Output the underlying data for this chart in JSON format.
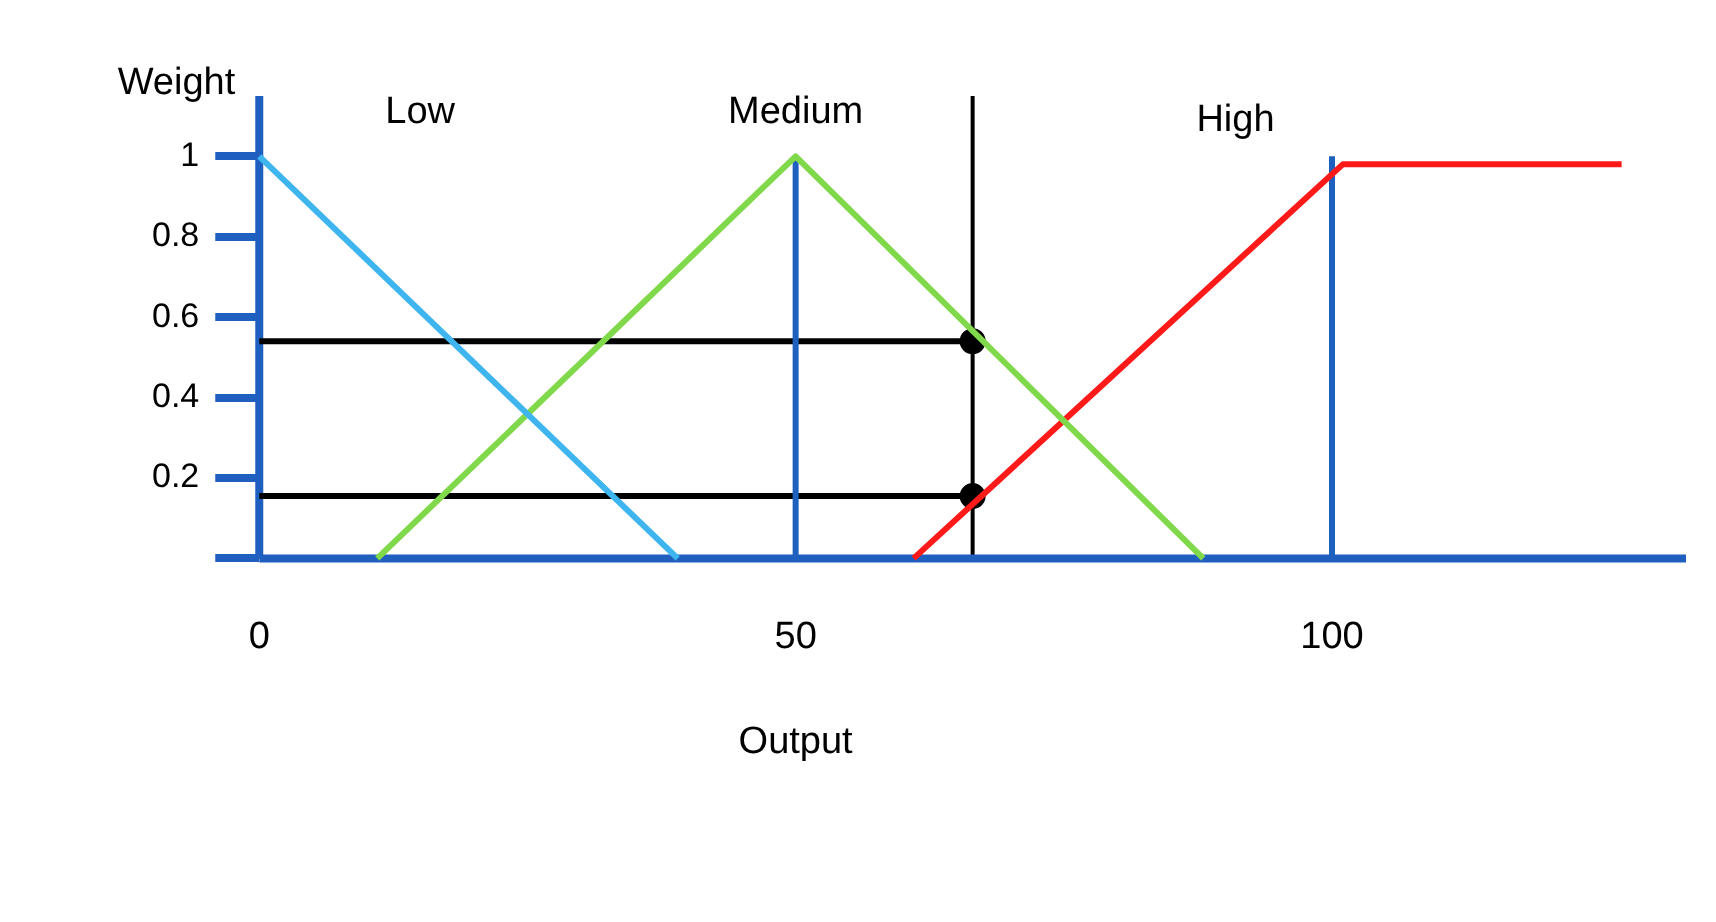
{
  "chart_data": {
    "type": "line",
    "xlabel": "Output",
    "ylabel": "Weight",
    "xlim": [
      0,
      133
    ],
    "xticks": [
      0,
      50,
      100
    ],
    "ylim": [
      0,
      1.15
    ],
    "yticks": [
      {
        "value": 0,
        "label": null
      },
      0.2,
      0.4,
      0.6,
      0.8,
      1
    ],
    "grid": false,
    "legend": false,
    "series": [
      {
        "name": "Low",
        "color": "#3fb5f0",
        "x": [
          0,
          39
        ],
        "values": [
          1,
          0
        ],
        "marker": "none"
      },
      {
        "name": "Medium",
        "color": "#80d94a",
        "x": [
          11,
          50,
          88
        ],
        "values": [
          0,
          1,
          0
        ],
        "marker": "none"
      },
      {
        "name": "High",
        "color": "#ff1a1a",
        "x": [
          61,
          101,
          127
        ],
        "values": [
          0,
          0.98,
          0.98
        ],
        "marker": "none"
      },
      {
        "color": "#1f5fbf",
        "x": [
          50,
          50
        ],
        "values": [
          0,
          1
        ],
        "marker": "none"
      },
      {
        "color": "#1f5fbf",
        "x": [
          100,
          100
        ],
        "values": [
          0,
          1
        ],
        "marker": "none"
      },
      {
        "color": "#000000",
        "x": [
          0,
          66.5
        ],
        "values": [
          0.54,
          0.54
        ],
        "marker": "none"
      },
      {
        "color": "#000000",
        "x": [
          0,
          66.5
        ],
        "values": [
          0.155,
          0.155
        ],
        "marker": "none"
      },
      {
        "type": "scatter",
        "color": "#000000",
        "x": [
          66.5,
          66.5
        ],
        "values": [
          0.54,
          0.155
        ],
        "marker": "circle"
      }
    ],
    "ref_lines": [
      {
        "axis": "x",
        "value": 66.5,
        "color": "#000000"
      },
      {
        "axis": "x",
        "value": 0,
        "color": "#1f5fbf"
      },
      {
        "axis": "y",
        "value": 0,
        "color": "#1f5fbf"
      }
    ]
  }
}
